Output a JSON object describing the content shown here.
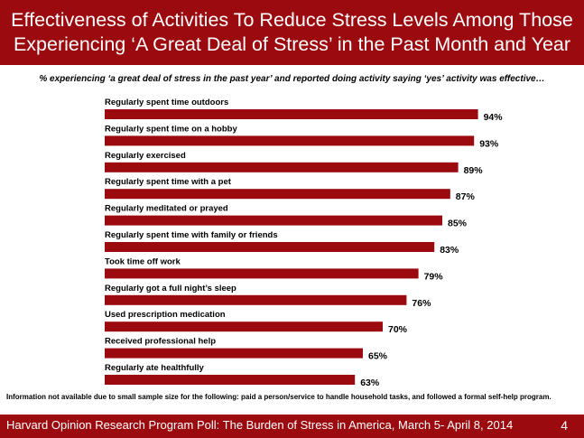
{
  "header": {
    "title": "Effectiveness of Activities To Reduce Stress Levels Among Those\nExperiencing ‘A Great Deal of Stress’ in the Past Month and Year"
  },
  "subtitle": "% experiencing ‘a great deal of stress in the past year’ and reported doing activity saying ‘yes’ activity was effective…",
  "chart_data": {
    "type": "bar",
    "orientation": "horizontal",
    "categories": [
      "Regularly spent time outdoors",
      "Regularly spent time on a hobby",
      "Regularly exercised",
      "Regularly spent time with a pet",
      "Regularly meditated or prayed",
      "Regularly spent time with family or friends",
      "Took time off work",
      "Regularly got a full night’s sleep",
      "Used prescription medication",
      "Received professional help",
      "Regularly ate healthfully"
    ],
    "values": [
      94,
      93,
      89,
      87,
      85,
      83,
      79,
      76,
      70,
      65,
      63
    ],
    "value_labels": [
      "94%",
      "93%",
      "89%",
      "87%",
      "85%",
      "83%",
      "79%",
      "76%",
      "70%",
      "65%",
      "63%"
    ],
    "xlim": [
      0,
      100
    ],
    "bar_color": "#9b0a0f",
    "grid": false
  },
  "footnote": "Information not available due to small sample size for  the  following: paid a person/service to handle household tasks,  and followed a formal self-help program.",
  "footer": {
    "source": "Harvard Opinion Research Program  Poll: The Burden of Stress in America, March 5- April 8, 2014",
    "page_number": "4"
  },
  "colors": {
    "brand": "#9b0a0f",
    "text": "#000000",
    "background": "#ffffff"
  }
}
